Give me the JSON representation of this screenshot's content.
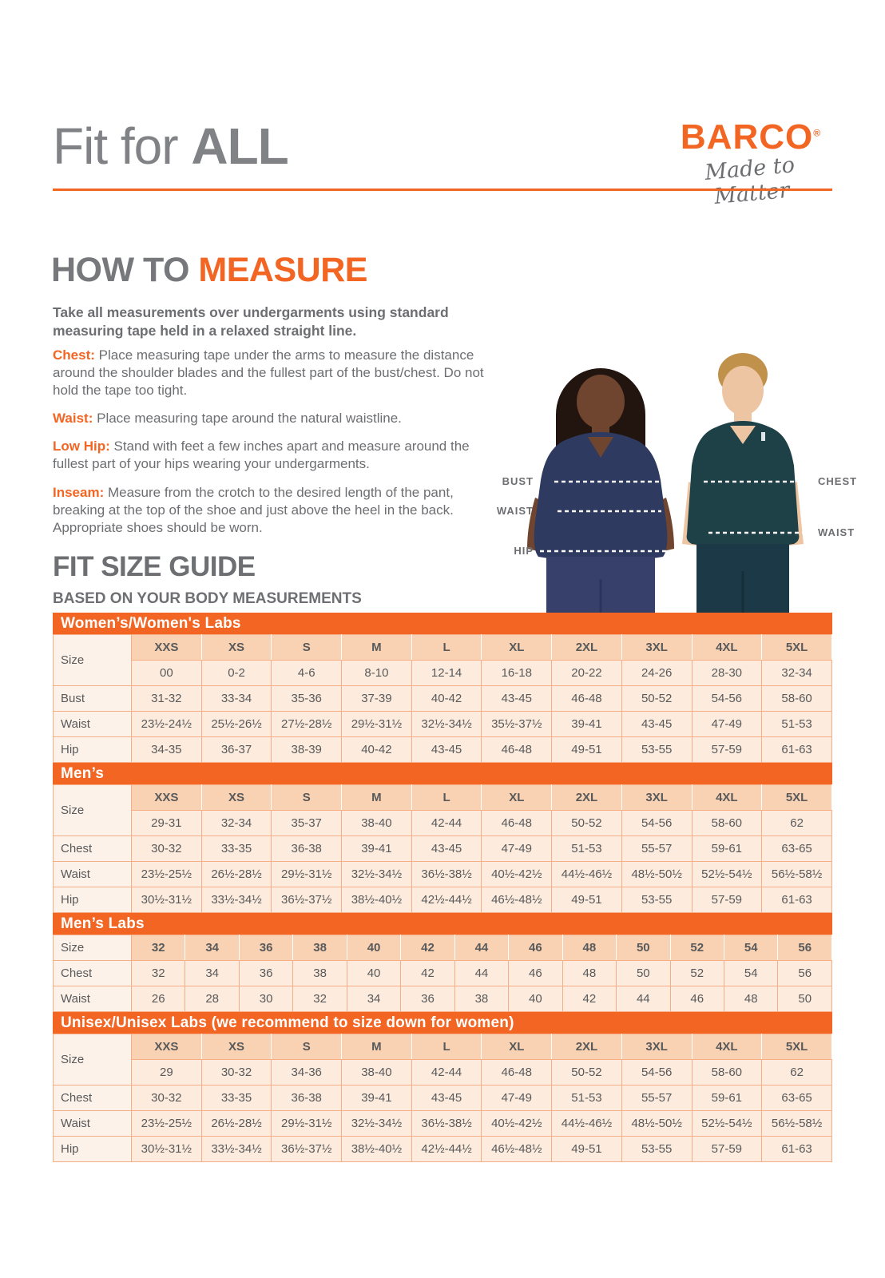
{
  "header": {
    "title_regular": "Fit for ",
    "title_bold": "ALL",
    "brand": "BARCO",
    "brand_mark": "®",
    "tagline": "Made to Matter"
  },
  "how_to_measure": {
    "heading_prefix": "HOW TO ",
    "heading_accent": "MEASURE",
    "intro": "Take all measurements over undergarments using standard measuring tape held in a relaxed straight line.",
    "items": [
      {
        "label": "Chest:",
        "text": "Place measuring tape under the arms to measure the distance around the shoulder blades and the fullest part of the bust/chest. Do not hold the tape too tight."
      },
      {
        "label": "Waist:",
        "text": "Place measuring tape around the natural waistline."
      },
      {
        "label": "Low Hip:",
        "text": "Stand with feet a few inches apart and measure around the fullest part of your hips wearing your undergarments."
      },
      {
        "label": "Inseam:",
        "text": "Measure from the crotch to the desired length of the pant, breaking at the top of the shoe and just above the heel in the back. Appropriate shoes should be worn."
      }
    ]
  },
  "figure": {
    "left_labels": [
      "BUST",
      "WAIST",
      "HIP"
    ],
    "right_labels": [
      "CHEST",
      "WAIST"
    ]
  },
  "size_guide": {
    "heading": "FIT SIZE GUIDE",
    "subheading": "BASED ON YOUR BODY MEASUREMENTS",
    "tables": [
      {
        "header": "Women’s/Women's Labs",
        "label_col": "Size",
        "size_row": [
          "XXS",
          "XS",
          "S",
          "M",
          "L",
          "XL",
          "2XL",
          "3XL",
          "4XL",
          "5XL"
        ],
        "numeric_row": [
          "00",
          "0-2",
          "4-6",
          "8-10",
          "12-14",
          "16-18",
          "20-22",
          "24-26",
          "28-30",
          "32-34"
        ],
        "rows": [
          {
            "label": "Bust",
            "values": [
              "31-32",
              "33-34",
              "35-36",
              "37-39",
              "40-42",
              "43-45",
              "46-48",
              "50-52",
              "54-56",
              "58-60"
            ]
          },
          {
            "label": "Waist",
            "values": [
              "23½-24½",
              "25½-26½",
              "27½-28½",
              "29½-31½",
              "32½-34½",
              "35½-37½",
              "39-41",
              "43-45",
              "47-49",
              "51-53"
            ]
          },
          {
            "label": "Hip",
            "values": [
              "34-35",
              "36-37",
              "38-39",
              "40-42",
              "43-45",
              "46-48",
              "49-51",
              "53-55",
              "57-59",
              "61-63"
            ]
          }
        ]
      },
      {
        "header": "Men’s",
        "label_col": "Size",
        "size_row": [
          "XXS",
          "XS",
          "S",
          "M",
          "L",
          "XL",
          "2XL",
          "3XL",
          "4XL",
          "5XL"
        ],
        "numeric_row": [
          "29-31",
          "32-34",
          "35-37",
          "38-40",
          "42-44",
          "46-48",
          "50-52",
          "54-56",
          "58-60",
          "62"
        ],
        "rows": [
          {
            "label": "Chest",
            "values": [
              "30-32",
              "33-35",
              "36-38",
              "39-41",
              "43-45",
              "47-49",
              "51-53",
              "55-57",
              "59-61",
              "63-65"
            ]
          },
          {
            "label": "Waist",
            "values": [
              "23½-25½",
              "26½-28½",
              "29½-31½",
              "32½-34½",
              "36½-38½",
              "40½-42½",
              "44½-46½",
              "48½-50½",
              "52½-54½",
              "56½-58½"
            ]
          },
          {
            "label": "Hip",
            "values": [
              "30½-31½",
              "33½-34½",
              "36½-37½",
              "38½-40½",
              "42½-44½",
              "46½-48½",
              "49-51",
              "53-55",
              "57-59",
              "61-63"
            ]
          }
        ]
      },
      {
        "header": "Men’s Labs",
        "label_col": "Size",
        "size_row": [
          "32",
          "34",
          "36",
          "38",
          "40",
          "42",
          "44",
          "46",
          "48",
          "50",
          "52",
          "54",
          "56"
        ],
        "rows": [
          {
            "label": "Chest",
            "values": [
              "32",
              "34",
              "36",
              "38",
              "40",
              "42",
              "44",
              "46",
              "48",
              "50",
              "52",
              "54",
              "56"
            ]
          },
          {
            "label": "Waist",
            "values": [
              "26",
              "28",
              "30",
              "32",
              "34",
              "36",
              "38",
              "40",
              "42",
              "44",
              "46",
              "48",
              "50"
            ]
          }
        ]
      },
      {
        "header": "Unisex/Unisex Labs (we recommend to size down for women)",
        "label_col": "Size",
        "size_row": [
          "XXS",
          "XS",
          "S",
          "M",
          "L",
          "XL",
          "2XL",
          "3XL",
          "4XL",
          "5XL"
        ],
        "numeric_row": [
          "29",
          "30-32",
          "34-36",
          "38-40",
          "42-44",
          "46-48",
          "50-52",
          "54-56",
          "58-60",
          "62"
        ],
        "rows": [
          {
            "label": "Chest",
            "values": [
              "30-32",
              "33-35",
              "36-38",
              "39-41",
              "43-45",
              "47-49",
              "51-53",
              "55-57",
              "59-61",
              "63-65"
            ]
          },
          {
            "label": "Waist",
            "values": [
              "23½-25½",
              "26½-28½",
              "29½-31½",
              "32½-34½",
              "36½-38½",
              "40½-42½",
              "44½-46½",
              "48½-50½",
              "52½-54½",
              "56½-58½"
            ]
          },
          {
            "label": "Hip",
            "values": [
              "30½-31½",
              "33½-34½",
              "36½-37½",
              "38½-40½",
              "42½-44½",
              "46½-48½",
              "49-51",
              "53-55",
              "57-59",
              "61-63"
            ]
          }
        ]
      }
    ]
  },
  "colors": {
    "accent_orange": "#F26522",
    "heading_gray": "#77787B",
    "text_gray": "#6D6E71",
    "cell_light": "#FDECDD",
    "cell_header": "#F8D2B2",
    "cell_label": "#FDF2E9",
    "table_border": "#F5AE85",
    "scrub_navy": "#2E3A60",
    "scrub_teal": "#1D4147"
  }
}
